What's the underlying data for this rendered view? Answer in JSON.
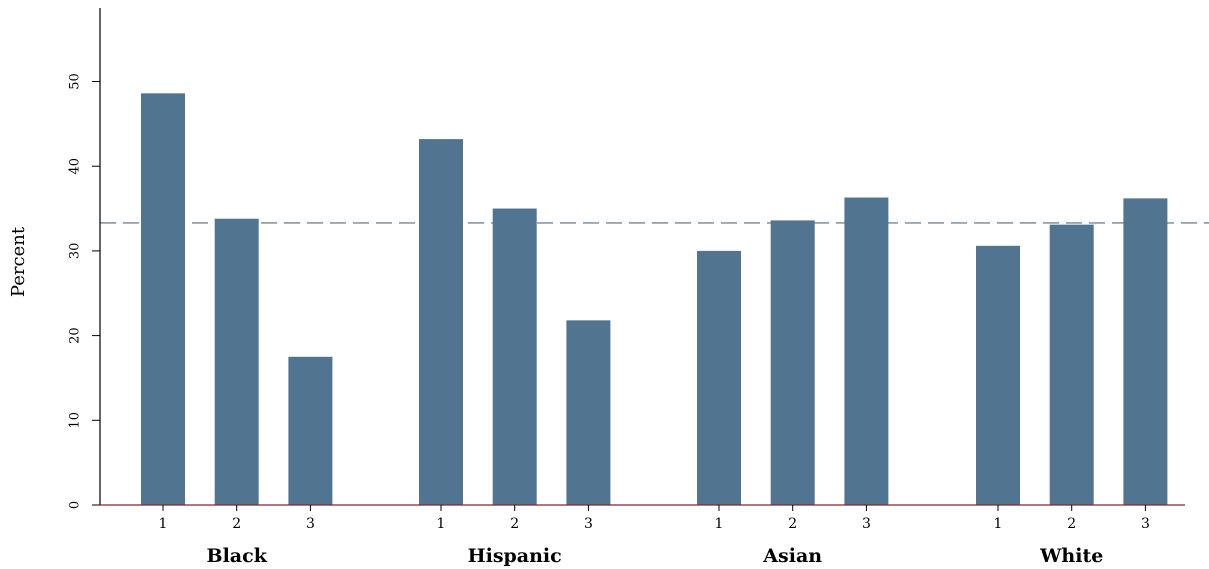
{
  "chart_data": {
    "type": "bar",
    "ylabel": "Percent",
    "ylim": [
      0,
      58
    ],
    "yticks": [
      0,
      10,
      20,
      30,
      40,
      50
    ],
    "reference_line": 33.3,
    "bar_color": "#517591",
    "reference_line_color": "#8a9aa6",
    "groups": [
      {
        "name": "Black",
        "categories": [
          "1",
          "2",
          "3"
        ],
        "values": [
          48.6,
          33.8,
          17.5
        ]
      },
      {
        "name": "Hispanic",
        "categories": [
          "1",
          "2",
          "3"
        ],
        "values": [
          43.2,
          35.0,
          21.8
        ]
      },
      {
        "name": "Asian",
        "categories": [
          "1",
          "2",
          "3"
        ],
        "values": [
          30.0,
          33.6,
          36.3
        ]
      },
      {
        "name": "White",
        "categories": [
          "1",
          "2",
          "3"
        ],
        "values": [
          30.6,
          33.1,
          36.2
        ]
      }
    ]
  }
}
